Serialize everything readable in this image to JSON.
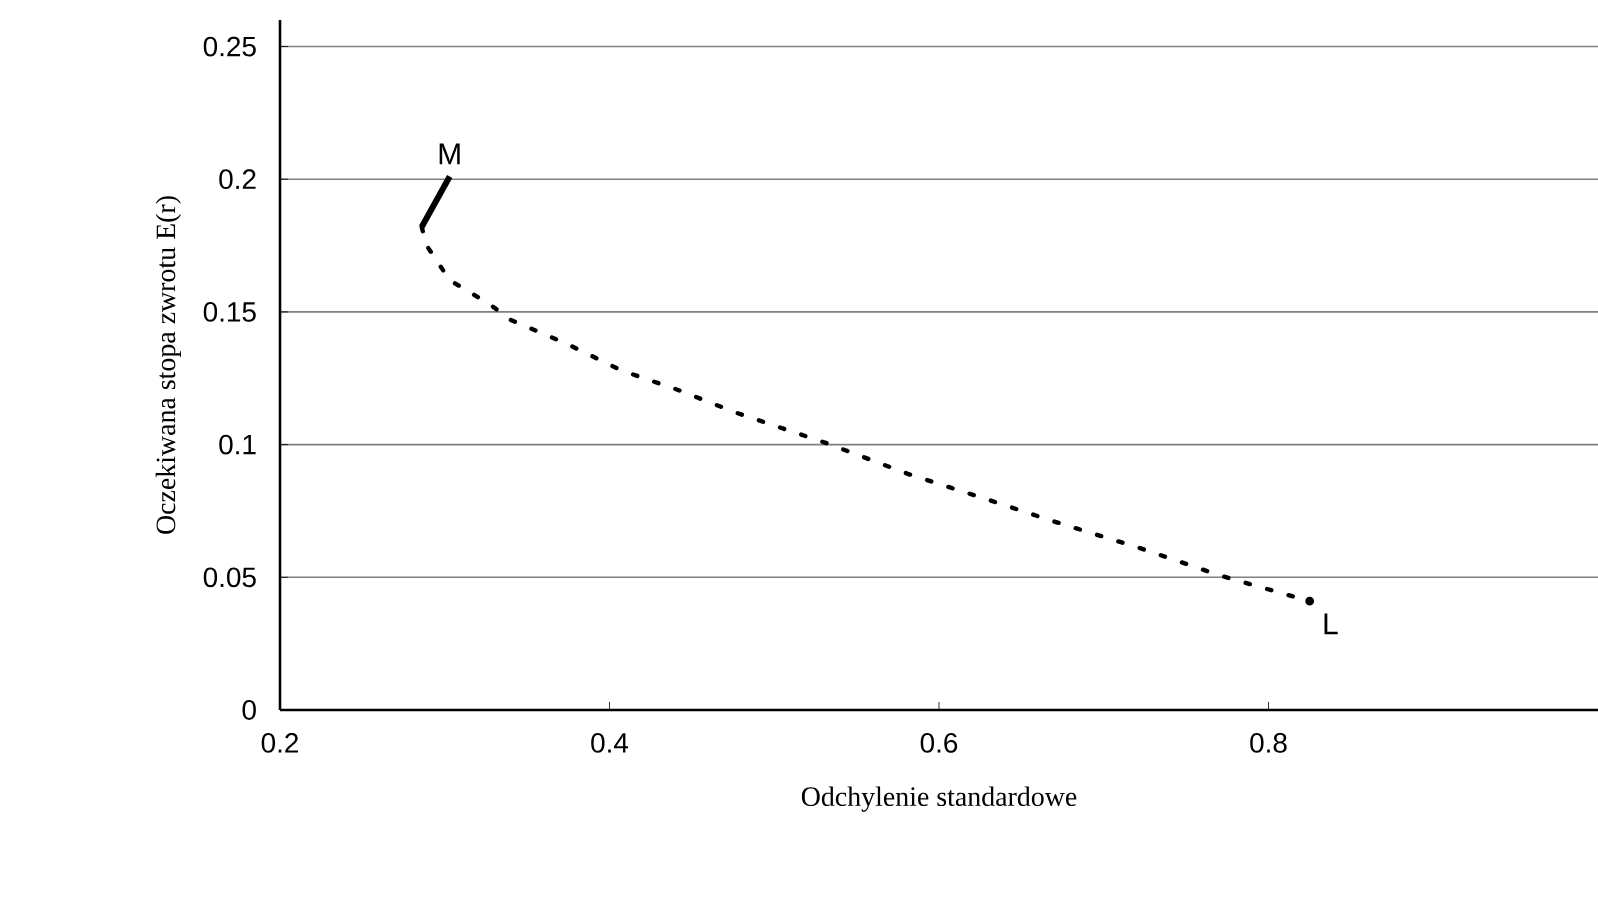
{
  "chart_data": {
    "type": "line",
    "xlabel": "Odchylenie standardowe",
    "ylabel": "Oczekiwana stopa zwrotu E(r)",
    "xlim": [
      0.2,
      1.0
    ],
    "ylim": [
      0,
      0.26
    ],
    "xticks": [
      0.2,
      0.4,
      0.6,
      0.8
    ],
    "yticks": [
      0,
      0.05,
      0.1,
      0.15,
      0.2,
      0.25
    ],
    "grid": "y",
    "marker": "none",
    "series": [
      {
        "color": "#000000",
        "line_style": "solid",
        "x": [
          0.286,
          0.303
        ],
        "values": [
          0.182,
          0.201
        ]
      },
      {
        "color": "#000000",
        "line_style": "dotted",
        "x": [
          0.286,
          0.289,
          0.303,
          0.327,
          0.34,
          0.374,
          0.407,
          0.442,
          0.477,
          0.532,
          0.581,
          0.631,
          0.668,
          0.722,
          0.771,
          0.825
        ],
        "values": [
          0.182,
          0.175,
          0.162,
          0.153,
          0.147,
          0.138,
          0.128,
          0.1205,
          0.112,
          0.1005,
          0.089,
          0.079,
          0.0714,
          0.061,
          0.0506,
          0.041
        ]
      }
    ],
    "annotations": [
      {
        "text": "M",
        "x": 0.303,
        "y": 0.201
      },
      {
        "text": "L",
        "x": 0.825,
        "y": 0.041
      }
    ]
  }
}
